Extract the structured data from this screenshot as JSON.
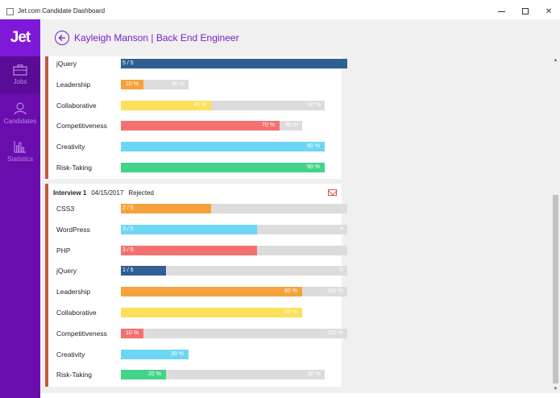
{
  "window": {
    "title": "Jet.com Candidate Dashboard"
  },
  "sidebar": {
    "logo": "Jet",
    "items": [
      {
        "label": "Jobs",
        "icon": "briefcase-icon",
        "active": true
      },
      {
        "label": "Candidates",
        "icon": "person-icon",
        "active": false
      },
      {
        "label": "Statistics",
        "icon": "bar-chart-icon",
        "active": false
      }
    ]
  },
  "header": {
    "title": "Kayleigh Manson | Back End Engineer"
  },
  "colors": {
    "accent": "#7a1fc6",
    "sidebar": "#6a0dad",
    "stripe": "#c25a3d",
    "orange": "#f5a23c",
    "yellow": "#fde05a",
    "red": "#f47171",
    "cyan": "#6ed6f5",
    "green": "#42d48a",
    "navy": "#2f5f93",
    "track": "#dcdcdc"
  },
  "card1": {
    "skills": [
      {
        "name": "jQuery",
        "value_label": "5 / 5",
        "value": 1.0,
        "max_label": "",
        "max": 1.0,
        "color": "#2f5f93"
      },
      {
        "name": "Leadership",
        "value_label": "10 %",
        "value": 0.1,
        "max_label": "30 %",
        "max": 0.3,
        "color": "#f5a23c"
      },
      {
        "name": "Collaborative",
        "value_label": "40 %",
        "value": 0.4,
        "max_label": "90 %",
        "max": 0.9,
        "color": "#fde05a"
      },
      {
        "name": "Competitiveness",
        "value_label": "70 %",
        "value": 0.7,
        "max_label": "80 %",
        "max": 0.8,
        "color": "#f47171"
      },
      {
        "name": "Creativity",
        "value_label": "90 %",
        "value": 0.9,
        "max_label": "",
        "max": 0.9,
        "color": "#6ed6f5"
      },
      {
        "name": "Risk-Taking",
        "value_label": "90 %",
        "value": 0.9,
        "max_label": "",
        "max": 0.9,
        "color": "#42d48a"
      }
    ]
  },
  "card2": {
    "interview": "Interview 1",
    "date": "04/15/2017",
    "status": "Rejected",
    "mail_icon": "mail-icon",
    "skills": [
      {
        "name": "CSS3",
        "value_label": "2 / 5",
        "value": 0.4,
        "max_label": "",
        "max": 1.0,
        "color": "#f5a23c"
      },
      {
        "name": "WordPress",
        "value_label": "3 / 5",
        "value": 0.6,
        "max_label": "5",
        "max": 1.0,
        "color": "#6ed6f5"
      },
      {
        "name": "PHP",
        "value_label": "3 / 5",
        "value": 0.6,
        "max_label": "",
        "max": 1.0,
        "color": "#f47171"
      },
      {
        "name": "jQuery",
        "value_label": "1 / 5",
        "value": 0.2,
        "max_label": "5",
        "max": 1.0,
        "color": "#2f5f93"
      },
      {
        "name": "Leadership",
        "value_label": "80 %",
        "value": 0.8,
        "max_label": "100 %",
        "max": 1.0,
        "color": "#f5a23c"
      },
      {
        "name": "Collaborative",
        "value_label": "80 %",
        "value": 0.8,
        "max_label": "",
        "max": 0.8,
        "color": "#fde05a"
      },
      {
        "name": "Competitiveness",
        "value_label": "10 %",
        "value": 0.1,
        "max_label": "100 %",
        "max": 1.0,
        "color": "#f47171"
      },
      {
        "name": "Creativity",
        "value_label": "30 %",
        "value": 0.3,
        "max_label": "",
        "max": 0.3,
        "color": "#6ed6f5"
      },
      {
        "name": "Risk-Taking",
        "value_label": "20 %",
        "value": 0.2,
        "max_label": "90 %",
        "max": 0.9,
        "color": "#42d48a"
      }
    ]
  }
}
